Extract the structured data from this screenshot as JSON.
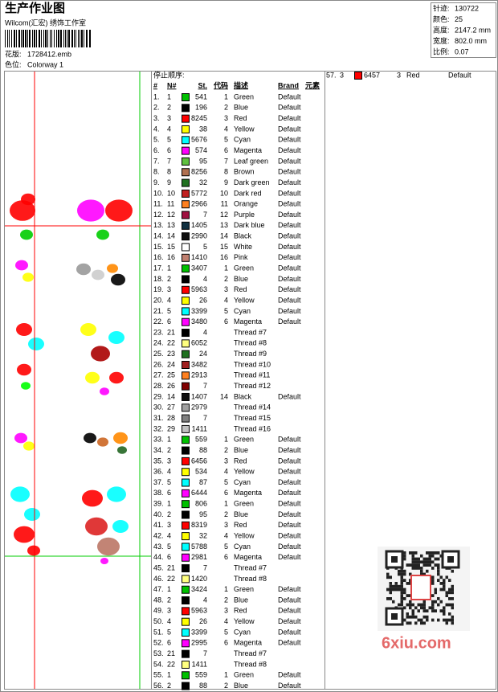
{
  "header": {
    "title": "生产作业图",
    "studio": "Wilcom(汇宏) 绣饰工作室",
    "design_label": "花版:",
    "design": "1728412.emb",
    "colorway_label": "色位:",
    "colorway": "Colorway 1"
  },
  "info": [
    {
      "label": "针迹:",
      "value": "130722"
    },
    {
      "label": "颜色:",
      "value": "25"
    },
    {
      "label": "高度:",
      "value": "2147.2 mm"
    },
    {
      "label": "宽度:",
      "value": "802.0 mm"
    },
    {
      "label": "比例:",
      "value": "0.07"
    }
  ],
  "table": {
    "title": "停止顺序:",
    "columns": [
      "#",
      "N#",
      "St.",
      "代码",
      "描述",
      "Brand",
      "元素"
    ],
    "rows": [
      {
        "no": "1.",
        "n": "1",
        "color": "#00c000",
        "st": "541",
        "code": "1",
        "desc": "Green",
        "brand": "Default"
      },
      {
        "no": "2.",
        "n": "2",
        "color": "#000000",
        "st": "196",
        "code": "2",
        "desc": "Blue",
        "brand": "Default"
      },
      {
        "no": "3.",
        "n": "3",
        "color": "#ff0000",
        "st": "8245",
        "code": "3",
        "desc": "Red",
        "brand": "Default"
      },
      {
        "no": "4.",
        "n": "4",
        "color": "#ffff00",
        "st": "38",
        "code": "4",
        "desc": "Yellow",
        "brand": "Default"
      },
      {
        "no": "5.",
        "n": "5",
        "color": "#00ffff",
        "st": "5676",
        "code": "5",
        "desc": "Cyan",
        "brand": "Default"
      },
      {
        "no": "6.",
        "n": "6",
        "color": "#ff00ff",
        "st": "574",
        "code": "6",
        "desc": "Magenta",
        "brand": "Default"
      },
      {
        "no": "7.",
        "n": "7",
        "color": "#60c040",
        "st": "95",
        "code": "7",
        "desc": "Leaf green",
        "brand": "Default"
      },
      {
        "no": "8.",
        "n": "8",
        "color": "#b07050",
        "st": "8256",
        "code": "8",
        "desc": "Brown",
        "brand": "Default"
      },
      {
        "no": "9.",
        "n": "9",
        "color": "#207020",
        "st": "32",
        "code": "9",
        "desc": "Dark green",
        "brand": "Default"
      },
      {
        "no": "10.",
        "n": "10",
        "color": "#c02020",
        "st": "5772",
        "code": "10",
        "desc": "Dark red",
        "brand": "Default"
      },
      {
        "no": "11.",
        "n": "11",
        "color": "#ff8020",
        "st": "2966",
        "code": "11",
        "desc": "Orange",
        "brand": "Default"
      },
      {
        "no": "12.",
        "n": "12",
        "color": "#a01040",
        "st": "7",
        "code": "12",
        "desc": "Purple",
        "brand": "Default"
      },
      {
        "no": "13.",
        "n": "13",
        "color": "#103040",
        "st": "1405",
        "code": "13",
        "desc": "Dark blue",
        "brand": "Default"
      },
      {
        "no": "14.",
        "n": "14",
        "color": "#101010",
        "st": "2990",
        "code": "14",
        "desc": "Black",
        "brand": "Default"
      },
      {
        "no": "15.",
        "n": "15",
        "color": "#ffffff",
        "st": "5",
        "code": "15",
        "desc": "White",
        "brand": "Default"
      },
      {
        "no": "16.",
        "n": "16",
        "color": "#c08070",
        "st": "1410",
        "code": "16",
        "desc": "Pink",
        "brand": "Default"
      },
      {
        "no": "17.",
        "n": "1",
        "color": "#00c000",
        "st": "3407",
        "code": "1",
        "desc": "Green",
        "brand": "Default"
      },
      {
        "no": "18.",
        "n": "2",
        "color": "#000000",
        "st": "4",
        "code": "2",
        "desc": "Blue",
        "brand": "Default"
      },
      {
        "no": "19.",
        "n": "3",
        "color": "#ff0000",
        "st": "5963",
        "code": "3",
        "desc": "Red",
        "brand": "Default"
      },
      {
        "no": "20.",
        "n": "4",
        "color": "#ffff00",
        "st": "26",
        "code": "4",
        "desc": "Yellow",
        "brand": "Default"
      },
      {
        "no": "21.",
        "n": "5",
        "color": "#00ffff",
        "st": "3399",
        "code": "5",
        "desc": "Cyan",
        "brand": "Default"
      },
      {
        "no": "22.",
        "n": "6",
        "color": "#ff00ff",
        "st": "3480",
        "code": "6",
        "desc": "Magenta",
        "brand": "Default"
      },
      {
        "no": "23.",
        "n": "21",
        "color": "#000000",
        "st": "4",
        "desc": "Thread #7"
      },
      {
        "no": "24.",
        "n": "22",
        "color": "#ffff80",
        "st": "6052",
        "desc": "Thread #8"
      },
      {
        "no": "25.",
        "n": "23",
        "color": "#207020",
        "st": "24",
        "desc": "Thread #9"
      },
      {
        "no": "26.",
        "n": "24",
        "color": "#a02020",
        "st": "3482",
        "desc": "Thread #10"
      },
      {
        "no": "27.",
        "n": "25",
        "color": "#ff8020",
        "st": "2913",
        "desc": "Thread #11"
      },
      {
        "no": "28.",
        "n": "26",
        "color": "#800000",
        "st": "7",
        "desc": "Thread #12"
      },
      {
        "no": "29.",
        "n": "14",
        "color": "#101010",
        "st": "1407",
        "code": "14",
        "desc": "Black",
        "brand": "Default"
      },
      {
        "no": "30.",
        "n": "27",
        "color": "#a0a0a0",
        "st": "2979",
        "desc": "Thread #14"
      },
      {
        "no": "31.",
        "n": "28",
        "color": "#808080",
        "st": "7",
        "desc": "Thread #15"
      },
      {
        "no": "32.",
        "n": "29",
        "color": "#c0c0c0",
        "st": "1411",
        "desc": "Thread #16"
      },
      {
        "no": "33.",
        "n": "1",
        "color": "#00c000",
        "st": "559",
        "code": "1",
        "desc": "Green",
        "brand": "Default"
      },
      {
        "no": "34.",
        "n": "2",
        "color": "#000000",
        "st": "88",
        "code": "2",
        "desc": "Blue",
        "brand": "Default"
      },
      {
        "no": "35.",
        "n": "3",
        "color": "#ff0000",
        "st": "6456",
        "code": "3",
        "desc": "Red",
        "brand": "Default"
      },
      {
        "no": "36.",
        "n": "4",
        "color": "#ffff00",
        "st": "534",
        "code": "4",
        "desc": "Yellow",
        "brand": "Default"
      },
      {
        "no": "37.",
        "n": "5",
        "color": "#00ffff",
        "st": "87",
        "code": "5",
        "desc": "Cyan",
        "brand": "Default"
      },
      {
        "no": "38.",
        "n": "6",
        "color": "#ff00ff",
        "st": "6444",
        "code": "6",
        "desc": "Magenta",
        "brand": "Default"
      },
      {
        "no": "39.",
        "n": "1",
        "color": "#00c000",
        "st": "806",
        "code": "1",
        "desc": "Green",
        "brand": "Default"
      },
      {
        "no": "40.",
        "n": "2",
        "color": "#000000",
        "st": "95",
        "code": "2",
        "desc": "Blue",
        "brand": "Default"
      },
      {
        "no": "41.",
        "n": "3",
        "color": "#ff0000",
        "st": "8319",
        "code": "3",
        "desc": "Red",
        "brand": "Default"
      },
      {
        "no": "42.",
        "n": "4",
        "color": "#ffff00",
        "st": "32",
        "code": "4",
        "desc": "Yellow",
        "brand": "Default"
      },
      {
        "no": "43.",
        "n": "5",
        "color": "#00ffff",
        "st": "5788",
        "code": "5",
        "desc": "Cyan",
        "brand": "Default"
      },
      {
        "no": "44.",
        "n": "6",
        "color": "#ff00ff",
        "st": "2981",
        "code": "6",
        "desc": "Magenta",
        "brand": "Default"
      },
      {
        "no": "45.",
        "n": "21",
        "color": "#000000",
        "st": "7",
        "desc": "Thread #7"
      },
      {
        "no": "46.",
        "n": "22",
        "color": "#ffff80",
        "st": "1420",
        "desc": "Thread #8"
      },
      {
        "no": "47.",
        "n": "1",
        "color": "#00c000",
        "st": "3424",
        "code": "1",
        "desc": "Green",
        "brand": "Default"
      },
      {
        "no": "48.",
        "n": "2",
        "color": "#000000",
        "st": "4",
        "code": "2",
        "desc": "Blue",
        "brand": "Default"
      },
      {
        "no": "49.",
        "n": "3",
        "color": "#ff0000",
        "st": "5963",
        "code": "3",
        "desc": "Red",
        "brand": "Default"
      },
      {
        "no": "50.",
        "n": "4",
        "color": "#ffff00",
        "st": "26",
        "code": "4",
        "desc": "Yellow",
        "brand": "Default"
      },
      {
        "no": "51.",
        "n": "5",
        "color": "#00ffff",
        "st": "3399",
        "code": "5",
        "desc": "Cyan",
        "brand": "Default"
      },
      {
        "no": "52.",
        "n": "6",
        "color": "#ff00ff",
        "st": "2995",
        "code": "6",
        "desc": "Magenta",
        "brand": "Default"
      },
      {
        "no": "53.",
        "n": "21",
        "color": "#000000",
        "st": "7",
        "desc": "Thread #7"
      },
      {
        "no": "54.",
        "n": "22",
        "color": "#ffff80",
        "st": "1411",
        "desc": "Thread #8"
      },
      {
        "no": "55.",
        "n": "1",
        "color": "#00c000",
        "st": "559",
        "code": "1",
        "desc": "Green",
        "brand": "Default"
      },
      {
        "no": "56.",
        "n": "2",
        "color": "#000000",
        "st": "88",
        "code": "2",
        "desc": "Blue",
        "brand": "Default"
      }
    ]
  },
  "continued": {
    "no": "57.",
    "n": "3",
    "color": "#ff0000",
    "st": "6457",
    "code": "3",
    "desc": "Red",
    "brand": "Default"
  },
  "watermark": "6xiu.com"
}
